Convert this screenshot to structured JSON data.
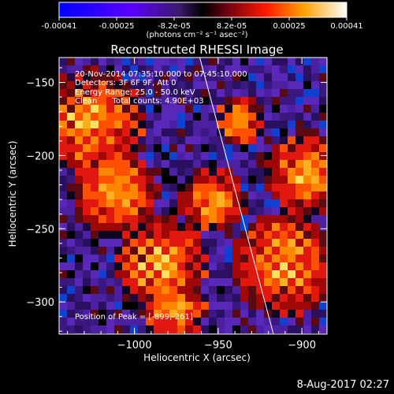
{
  "colorbar": {
    "ticks": [
      "-0.00041",
      "-0.00025",
      "-8.2e-05",
      "8.2e-05",
      "0.00025",
      "0.00041"
    ],
    "unit_label": "(photons cm⁻² s⁻¹ asec⁻²)"
  },
  "chart_data": {
    "type": "heatmap",
    "title": "Reconstructed RHESSI Image",
    "xlabel": "Heliocentric X (arcsec)",
    "ylabel": "Heliocentric Y (arcsec)",
    "xlim": [
      -1045,
      -885
    ],
    "ylim": [
      -322,
      -133
    ],
    "x_ticks": [
      -1000,
      -950,
      -900
    ],
    "y_ticks": [
      -150,
      -200,
      -250,
      -300
    ],
    "colorscale_range": [
      -0.00041,
      0.00041
    ],
    "limb_line": {
      "x": [
        -961,
        -917
      ],
      "y": [
        -133,
        -322
      ]
    },
    "peak": {
      "x": -899,
      "y": -261
    }
  },
  "annotations": {
    "time_range": "20-Nov-2014 07:35:10.000 to 07:45:10.000",
    "detectors": "Detectors: 3F 6F 9F, Att 0",
    "energy_range": "Energy Range: 25.0 - 50.0 keV",
    "clean_counts": "Clean      Total counts: 4.90E+03",
    "peak_position": "Position of Peak = [-899,-261]"
  },
  "footer": {
    "date": "8-Aug-2017 02:27"
  },
  "colors": {
    "background": "#000000",
    "text": "#ffffff",
    "limb_line": "#ffffff"
  }
}
